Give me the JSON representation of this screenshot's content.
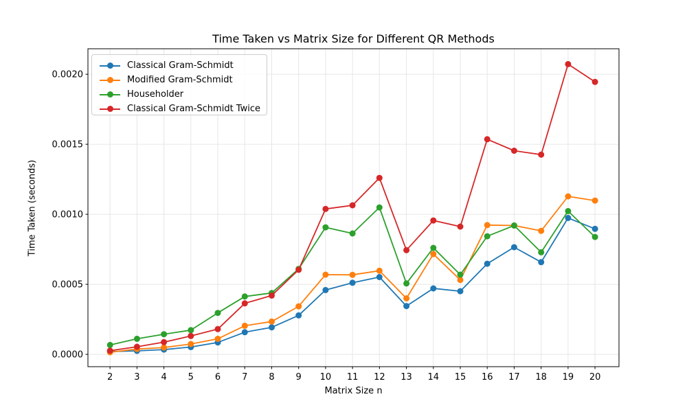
{
  "chart_data": {
    "type": "line",
    "title": "Time Taken vs Matrix Size for Different QR Methods",
    "xlabel": "Matrix Size n",
    "ylabel": "Time Taken (seconds)",
    "x": [
      2,
      3,
      4,
      5,
      6,
      7,
      8,
      9,
      10,
      11,
      12,
      13,
      14,
      15,
      16,
      17,
      18,
      19,
      20
    ],
    "xtick_labels": [
      "2",
      "3",
      "4",
      "5",
      "6",
      "7",
      "8",
      "9",
      "10",
      "11",
      "12",
      "13",
      "14",
      "15",
      "16",
      "17",
      "18",
      "19",
      "20"
    ],
    "yticks": [
      0.0,
      0.0005,
      0.001,
      0.0015,
      0.002
    ],
    "ytick_labels": [
      "0.0000",
      "0.0005",
      "0.0010",
      "0.0015",
      "0.0020"
    ],
    "xlim": [
      1.18,
      20.89
    ],
    "ylim": [
      -8.8e-05,
      0.002182
    ],
    "grid": true,
    "grid_color": "#e6e6e6",
    "legend_position": "upper left",
    "series": [
      {
        "name": "Classical Gram-Schmidt",
        "color": "#1f77b4",
        "values": [
          2e-05,
          2.5e-05,
          3.4e-05,
          5.2e-05,
          8.5e-05,
          0.000158,
          0.000193,
          0.000278,
          0.000459,
          0.000511,
          0.000552,
          0.000345,
          0.000471,
          0.000451,
          0.000647,
          0.000765,
          0.000658,
          0.000974,
          0.000896
        ]
      },
      {
        "name": "Modified Gram-Schmidt",
        "color": "#ff7f0e",
        "values": [
          1.5e-05,
          3.8e-05,
          4.9e-05,
          7.4e-05,
          0.000111,
          0.000204,
          0.000234,
          0.000343,
          0.000569,
          0.000568,
          0.000597,
          0.0004,
          0.000716,
          0.000531,
          0.000923,
          0.00092,
          0.000882,
          0.001128,
          0.001098
        ]
      },
      {
        "name": "Householder",
        "color": "#2ca02c",
        "values": [
          6.7e-05,
          0.000111,
          0.000144,
          0.000173,
          0.000296,
          0.000413,
          0.000438,
          0.00061,
          0.000907,
          0.000863,
          0.001049,
          0.000506,
          0.00076,
          0.000569,
          0.000843,
          0.00092,
          0.000729,
          0.001023,
          0.000838
        ]
      },
      {
        "name": "Classical Gram-Schmidt Twice",
        "color": "#d62728",
        "values": [
          2.6e-05,
          5.4e-05,
          8.7e-05,
          0.000131,
          0.00018,
          0.000364,
          0.00042,
          0.000604,
          0.001038,
          0.001064,
          0.00126,
          0.000744,
          0.000956,
          0.000912,
          0.001536,
          0.001454,
          0.001426,
          0.002072,
          0.001945
        ]
      }
    ]
  }
}
